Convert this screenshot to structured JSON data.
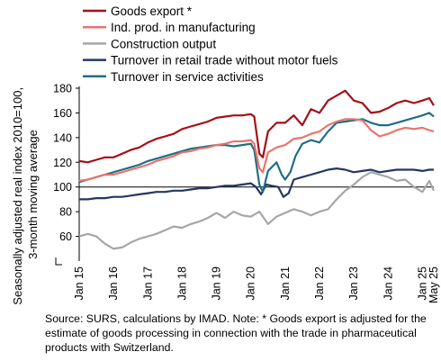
{
  "chart_data": {
    "type": "line",
    "ylabel": "Seasonally adjusted real index 2010=100, 3-month moving average",
    "ylim": [
      40,
      180
    ],
    "yticks": [
      60,
      80,
      100,
      120,
      140,
      160,
      180
    ],
    "reference_line": 100,
    "x_tick_labels": [
      "Jan 15",
      "Jan 16",
      "Jan 17",
      "Jan 18",
      "Jan 19",
      "Jan 20",
      "Jan 21",
      "Jan 22",
      "Jan 23",
      "Jan 24",
      "Jan 25",
      "May 25"
    ],
    "legend_position": "top",
    "series": [
      {
        "name": "Goods export *",
        "color": "#a50f15",
        "points": [
          [
            2015.0,
            121
          ],
          [
            2015.25,
            120
          ],
          [
            2015.5,
            122
          ],
          [
            2015.75,
            124
          ],
          [
            2016.0,
            124
          ],
          [
            2016.25,
            127
          ],
          [
            2016.5,
            130
          ],
          [
            2016.75,
            132
          ],
          [
            2017.0,
            136
          ],
          [
            2017.25,
            139
          ],
          [
            2017.5,
            141
          ],
          [
            2017.75,
            143
          ],
          [
            2018.0,
            147
          ],
          [
            2018.25,
            149
          ],
          [
            2018.5,
            151
          ],
          [
            2018.75,
            153
          ],
          [
            2019.0,
            156
          ],
          [
            2019.25,
            157
          ],
          [
            2019.5,
            158
          ],
          [
            2019.75,
            158
          ],
          [
            2020.0,
            159
          ],
          [
            2020.1,
            157
          ],
          [
            2020.25,
            127
          ],
          [
            2020.35,
            124
          ],
          [
            2020.5,
            145
          ],
          [
            2020.75,
            152
          ],
          [
            2021.0,
            152
          ],
          [
            2021.25,
            158
          ],
          [
            2021.5,
            150
          ],
          [
            2021.75,
            163
          ],
          [
            2022.0,
            160
          ],
          [
            2022.25,
            170
          ],
          [
            2022.5,
            174
          ],
          [
            2022.75,
            178
          ],
          [
            2023.0,
            170
          ],
          [
            2023.25,
            168
          ],
          [
            2023.5,
            160
          ],
          [
            2023.75,
            161
          ],
          [
            2024.0,
            164
          ],
          [
            2024.25,
            168
          ],
          [
            2024.5,
            170
          ],
          [
            2024.75,
            168
          ],
          [
            2025.0,
            170
          ],
          [
            2025.2,
            172
          ],
          [
            2025.33,
            166
          ]
        ]
      },
      {
        "name": "Ind. prod. in manufacturing",
        "color": "#e8746d",
        "points": [
          [
            2015.0,
            105
          ],
          [
            2015.25,
            106
          ],
          [
            2015.5,
            108
          ],
          [
            2015.75,
            110
          ],
          [
            2016.0,
            110
          ],
          [
            2016.25,
            112
          ],
          [
            2016.5,
            114
          ],
          [
            2016.75,
            116
          ],
          [
            2017.0,
            118
          ],
          [
            2017.25,
            121
          ],
          [
            2017.5,
            123
          ],
          [
            2017.75,
            125
          ],
          [
            2018.0,
            128
          ],
          [
            2018.25,
            129
          ],
          [
            2018.5,
            131
          ],
          [
            2018.75,
            132
          ],
          [
            2019.0,
            134
          ],
          [
            2019.25,
            135
          ],
          [
            2019.5,
            137
          ],
          [
            2019.75,
            137
          ],
          [
            2020.0,
            138
          ],
          [
            2020.1,
            135
          ],
          [
            2020.25,
            115
          ],
          [
            2020.35,
            112
          ],
          [
            2020.5,
            128
          ],
          [
            2020.75,
            132
          ],
          [
            2021.0,
            134
          ],
          [
            2021.25,
            139
          ],
          [
            2021.5,
            140
          ],
          [
            2021.75,
            143
          ],
          [
            2022.0,
            145
          ],
          [
            2022.25,
            150
          ],
          [
            2022.5,
            153
          ],
          [
            2022.75,
            155
          ],
          [
            2023.0,
            155
          ],
          [
            2023.25,
            154
          ],
          [
            2023.5,
            146
          ],
          [
            2023.75,
            141
          ],
          [
            2024.0,
            143
          ],
          [
            2024.25,
            146
          ],
          [
            2024.5,
            148
          ],
          [
            2024.75,
            147
          ],
          [
            2025.0,
            148
          ],
          [
            2025.2,
            146
          ],
          [
            2025.33,
            145
          ]
        ]
      },
      {
        "name": "Construction output",
        "color": "#a6a6a6",
        "points": [
          [
            2015.0,
            60
          ],
          [
            2015.25,
            62
          ],
          [
            2015.5,
            60
          ],
          [
            2015.75,
            54
          ],
          [
            2016.0,
            50
          ],
          [
            2016.25,
            51
          ],
          [
            2016.5,
            55
          ],
          [
            2016.75,
            58
          ],
          [
            2017.0,
            60
          ],
          [
            2017.25,
            62
          ],
          [
            2017.5,
            65
          ],
          [
            2017.75,
            68
          ],
          [
            2018.0,
            67
          ],
          [
            2018.25,
            70
          ],
          [
            2018.5,
            72
          ],
          [
            2018.75,
            75
          ],
          [
            2019.0,
            79
          ],
          [
            2019.25,
            75
          ],
          [
            2019.5,
            80
          ],
          [
            2019.75,
            77
          ],
          [
            2020.0,
            76
          ],
          [
            2020.25,
            80
          ],
          [
            2020.4,
            74
          ],
          [
            2020.5,
            70
          ],
          [
            2020.75,
            76
          ],
          [
            2021.0,
            79
          ],
          [
            2021.25,
            82
          ],
          [
            2021.5,
            80
          ],
          [
            2021.75,
            77
          ],
          [
            2022.0,
            80
          ],
          [
            2022.25,
            82
          ],
          [
            2022.5,
            90
          ],
          [
            2022.75,
            97
          ],
          [
            2023.0,
            102
          ],
          [
            2023.25,
            108
          ],
          [
            2023.5,
            112
          ],
          [
            2023.75,
            110
          ],
          [
            2024.0,
            108
          ],
          [
            2024.25,
            105
          ],
          [
            2024.5,
            106
          ],
          [
            2024.75,
            100
          ],
          [
            2025.0,
            96
          ],
          [
            2025.2,
            105
          ],
          [
            2025.33,
            97
          ]
        ]
      },
      {
        "name": "Turnover in retail trade without motor fuels",
        "color": "#24375f",
        "points": [
          [
            2015.0,
            90
          ],
          [
            2015.25,
            90
          ],
          [
            2015.5,
            91
          ],
          [
            2015.75,
            91
          ],
          [
            2016.0,
            92
          ],
          [
            2016.25,
            92
          ],
          [
            2016.5,
            93
          ],
          [
            2016.75,
            94
          ],
          [
            2017.0,
            95
          ],
          [
            2017.25,
            96
          ],
          [
            2017.5,
            96
          ],
          [
            2017.75,
            97
          ],
          [
            2018.0,
            97
          ],
          [
            2018.25,
            98
          ],
          [
            2018.5,
            99
          ],
          [
            2018.75,
            99
          ],
          [
            2019.0,
            100
          ],
          [
            2019.25,
            101
          ],
          [
            2019.5,
            101
          ],
          [
            2019.75,
            102
          ],
          [
            2020.0,
            103
          ],
          [
            2020.15,
            100
          ],
          [
            2020.3,
            94
          ],
          [
            2020.45,
            102
          ],
          [
            2020.6,
            101
          ],
          [
            2020.8,
            100
          ],
          [
            2020.95,
            92
          ],
          [
            2021.1,
            95
          ],
          [
            2021.25,
            106
          ],
          [
            2021.5,
            108
          ],
          [
            2021.75,
            110
          ],
          [
            2022.0,
            112
          ],
          [
            2022.25,
            114
          ],
          [
            2022.5,
            115
          ],
          [
            2022.75,
            114
          ],
          [
            2023.0,
            112
          ],
          [
            2023.25,
            113
          ],
          [
            2023.5,
            114
          ],
          [
            2023.75,
            112
          ],
          [
            2024.0,
            113
          ],
          [
            2024.25,
            114
          ],
          [
            2024.5,
            114
          ],
          [
            2024.75,
            114
          ],
          [
            2025.0,
            113
          ],
          [
            2025.2,
            114
          ],
          [
            2025.33,
            114
          ]
        ]
      },
      {
        "name": "Turnover in service activities",
        "color": "#1f6e85",
        "points": [
          [
            2015.0,
            104
          ],
          [
            2015.25,
            106
          ],
          [
            2015.5,
            108
          ],
          [
            2015.75,
            110
          ],
          [
            2016.0,
            112
          ],
          [
            2016.25,
            114
          ],
          [
            2016.5,
            116
          ],
          [
            2016.75,
            118
          ],
          [
            2017.0,
            121
          ],
          [
            2017.25,
            123
          ],
          [
            2017.5,
            125
          ],
          [
            2017.75,
            127
          ],
          [
            2018.0,
            129
          ],
          [
            2018.25,
            131
          ],
          [
            2018.5,
            132
          ],
          [
            2018.75,
            133
          ],
          [
            2019.0,
            134
          ],
          [
            2019.25,
            134
          ],
          [
            2019.5,
            133
          ],
          [
            2019.75,
            134
          ],
          [
            2020.0,
            135
          ],
          [
            2020.1,
            130
          ],
          [
            2020.25,
            102
          ],
          [
            2020.35,
            96
          ],
          [
            2020.5,
            113
          ],
          [
            2020.75,
            120
          ],
          [
            2020.9,
            110
          ],
          [
            2021.0,
            106
          ],
          [
            2021.15,
            112
          ],
          [
            2021.3,
            125
          ],
          [
            2021.5,
            135
          ],
          [
            2021.75,
            138
          ],
          [
            2022.0,
            136
          ],
          [
            2022.25,
            145
          ],
          [
            2022.5,
            152
          ],
          [
            2022.75,
            153
          ],
          [
            2023.0,
            154
          ],
          [
            2023.25,
            155
          ],
          [
            2023.5,
            152
          ],
          [
            2023.75,
            150
          ],
          [
            2024.0,
            150
          ],
          [
            2024.25,
            152
          ],
          [
            2024.5,
            154
          ],
          [
            2024.75,
            156
          ],
          [
            2025.0,
            158
          ],
          [
            2025.2,
            160
          ],
          [
            2025.33,
            157
          ]
        ]
      }
    ]
  },
  "source_note": "Source: SURS, calculations by IMAD. Note: * Goods export is adjusted for the estimate of goods processing in connection with the trade in pharmaceutical products with Switzerland."
}
